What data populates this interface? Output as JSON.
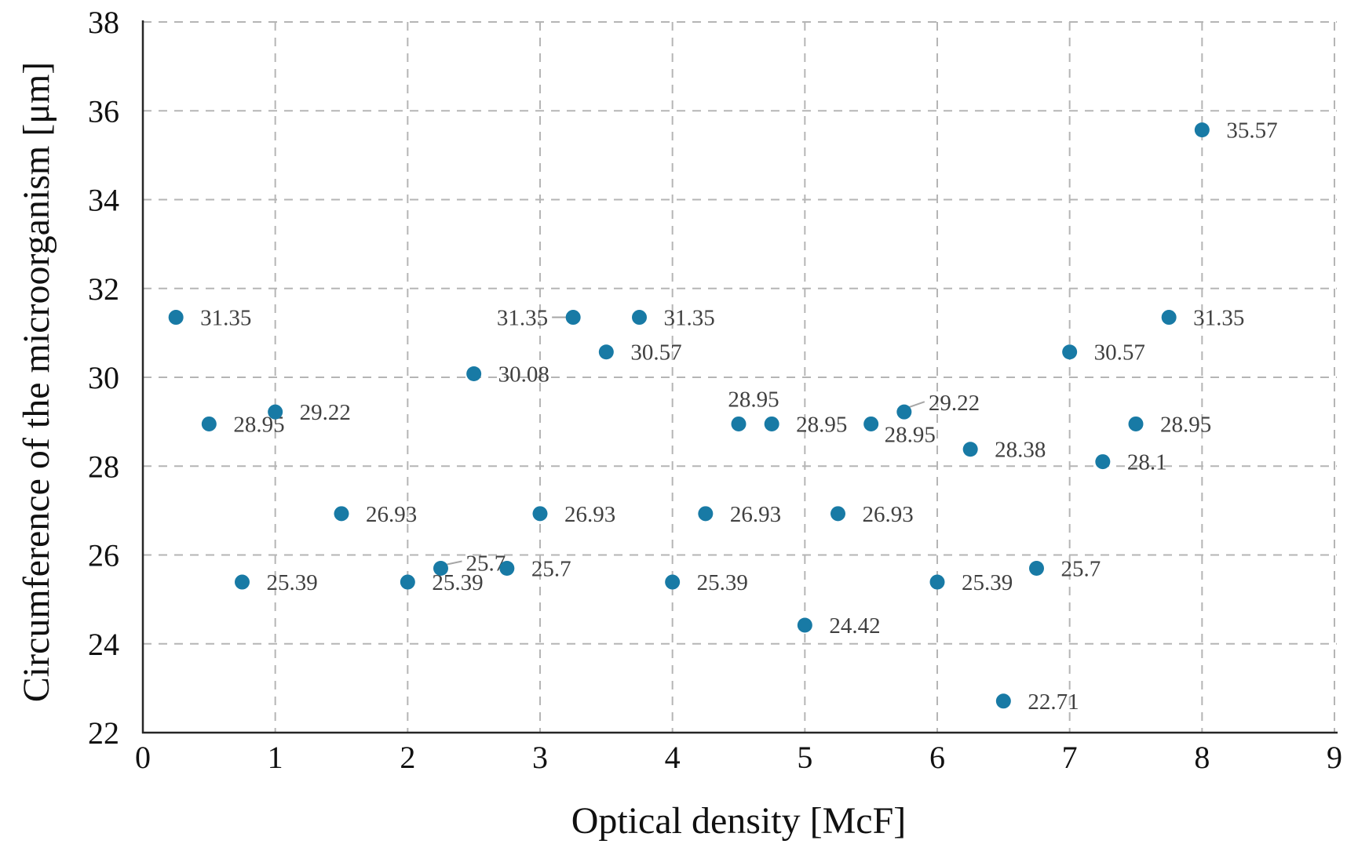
{
  "figure": {
    "background": "#ffffff"
  },
  "chart_data": {
    "type": "scatter",
    "title": "",
    "xlabel": "Optical density [McF]",
    "ylabel": "Circumference of the microorganism [μm]",
    "xlim": [
      0,
      9
    ],
    "ylim": [
      22,
      38
    ],
    "xticks": [
      0,
      1,
      2,
      3,
      4,
      5,
      6,
      7,
      8,
      9
    ],
    "yticks": [
      22,
      24,
      26,
      28,
      30,
      32,
      34,
      36,
      38
    ],
    "grid": "dashed",
    "legend_position": "none",
    "colors": {
      "marker": "#187aa5",
      "data_label": "#404040",
      "tick_label": "#111111",
      "axis_line": "#262626",
      "gridline": "#b5b5b5",
      "leader_line": "#a6a6a6"
    },
    "points": [
      {
        "x": 0.25,
        "y": 31.35,
        "label": "31.35",
        "label_pos": "right"
      },
      {
        "x": 0.5,
        "y": 28.95,
        "label": "28.95",
        "label_pos": "right"
      },
      {
        "x": 0.75,
        "y": 25.39,
        "label": "25.39",
        "label_pos": "right"
      },
      {
        "x": 1,
        "y": 29.22,
        "label": "29.22",
        "label_pos": "right"
      },
      {
        "x": 1.5,
        "y": 26.93,
        "label": "26.93",
        "label_pos": "right"
      },
      {
        "x": 2,
        "y": 25.39,
        "label": "25.39",
        "label_pos": "right"
      },
      {
        "x": 2.25,
        "y": 25.7,
        "label": "25.7",
        "label_pos": "right-leader"
      },
      {
        "x": 2.5,
        "y": 30.08,
        "label": "30.08",
        "label_pos": "right"
      },
      {
        "x": 2.75,
        "y": 25.7,
        "label": "25.7",
        "label_pos": "right"
      },
      {
        "x": 3,
        "y": 26.93,
        "label": "26.93",
        "label_pos": "right"
      },
      {
        "x": 3.25,
        "y": 31.35,
        "label": "31.35",
        "label_pos": "left-leader"
      },
      {
        "x": 3.5,
        "y": 30.57,
        "label": "30.57",
        "label_pos": "right"
      },
      {
        "x": 3.75,
        "y": 31.35,
        "label": "31.35",
        "label_pos": "right"
      },
      {
        "x": 4,
        "y": 25.39,
        "label": "25.39",
        "label_pos": "right"
      },
      {
        "x": 4.25,
        "y": 26.93,
        "label": "26.93",
        "label_pos": "right"
      },
      {
        "x": 4.5,
        "y": 28.95,
        "label": "28.95",
        "label_pos": "above"
      },
      {
        "x": 4.75,
        "y": 28.95,
        "label": "28.95",
        "label_pos": "right"
      },
      {
        "x": 5,
        "y": 24.42,
        "label": "24.42",
        "label_pos": "right"
      },
      {
        "x": 5.25,
        "y": 26.93,
        "label": "26.93",
        "label_pos": "right"
      },
      {
        "x": 5.5,
        "y": 28.95,
        "label": "28.95",
        "label_pos": "below-right"
      },
      {
        "x": 5.75,
        "y": 29.22,
        "label": "29.22",
        "label_pos": "right-leader-up"
      },
      {
        "x": 6,
        "y": 25.39,
        "label": "25.39",
        "label_pos": "right"
      },
      {
        "x": 6.25,
        "y": 28.38,
        "label": "28.38",
        "label_pos": "right"
      },
      {
        "x": 6.5,
        "y": 22.71,
        "label": "22.71",
        "label_pos": "right"
      },
      {
        "x": 6.75,
        "y": 25.7,
        "label": "25.7",
        "label_pos": "right"
      },
      {
        "x": 7,
        "y": 30.57,
        "label": "30.57",
        "label_pos": "right"
      },
      {
        "x": 7.25,
        "y": 28.1,
        "label": "28.1",
        "label_pos": "right"
      },
      {
        "x": 7.5,
        "y": 28.95,
        "label": "28.95",
        "label_pos": "right"
      },
      {
        "x": 7.75,
        "y": 31.35,
        "label": "31.35",
        "label_pos": "right"
      },
      {
        "x": 8,
        "y": 35.57,
        "label": "35.57",
        "label_pos": "right"
      }
    ]
  }
}
